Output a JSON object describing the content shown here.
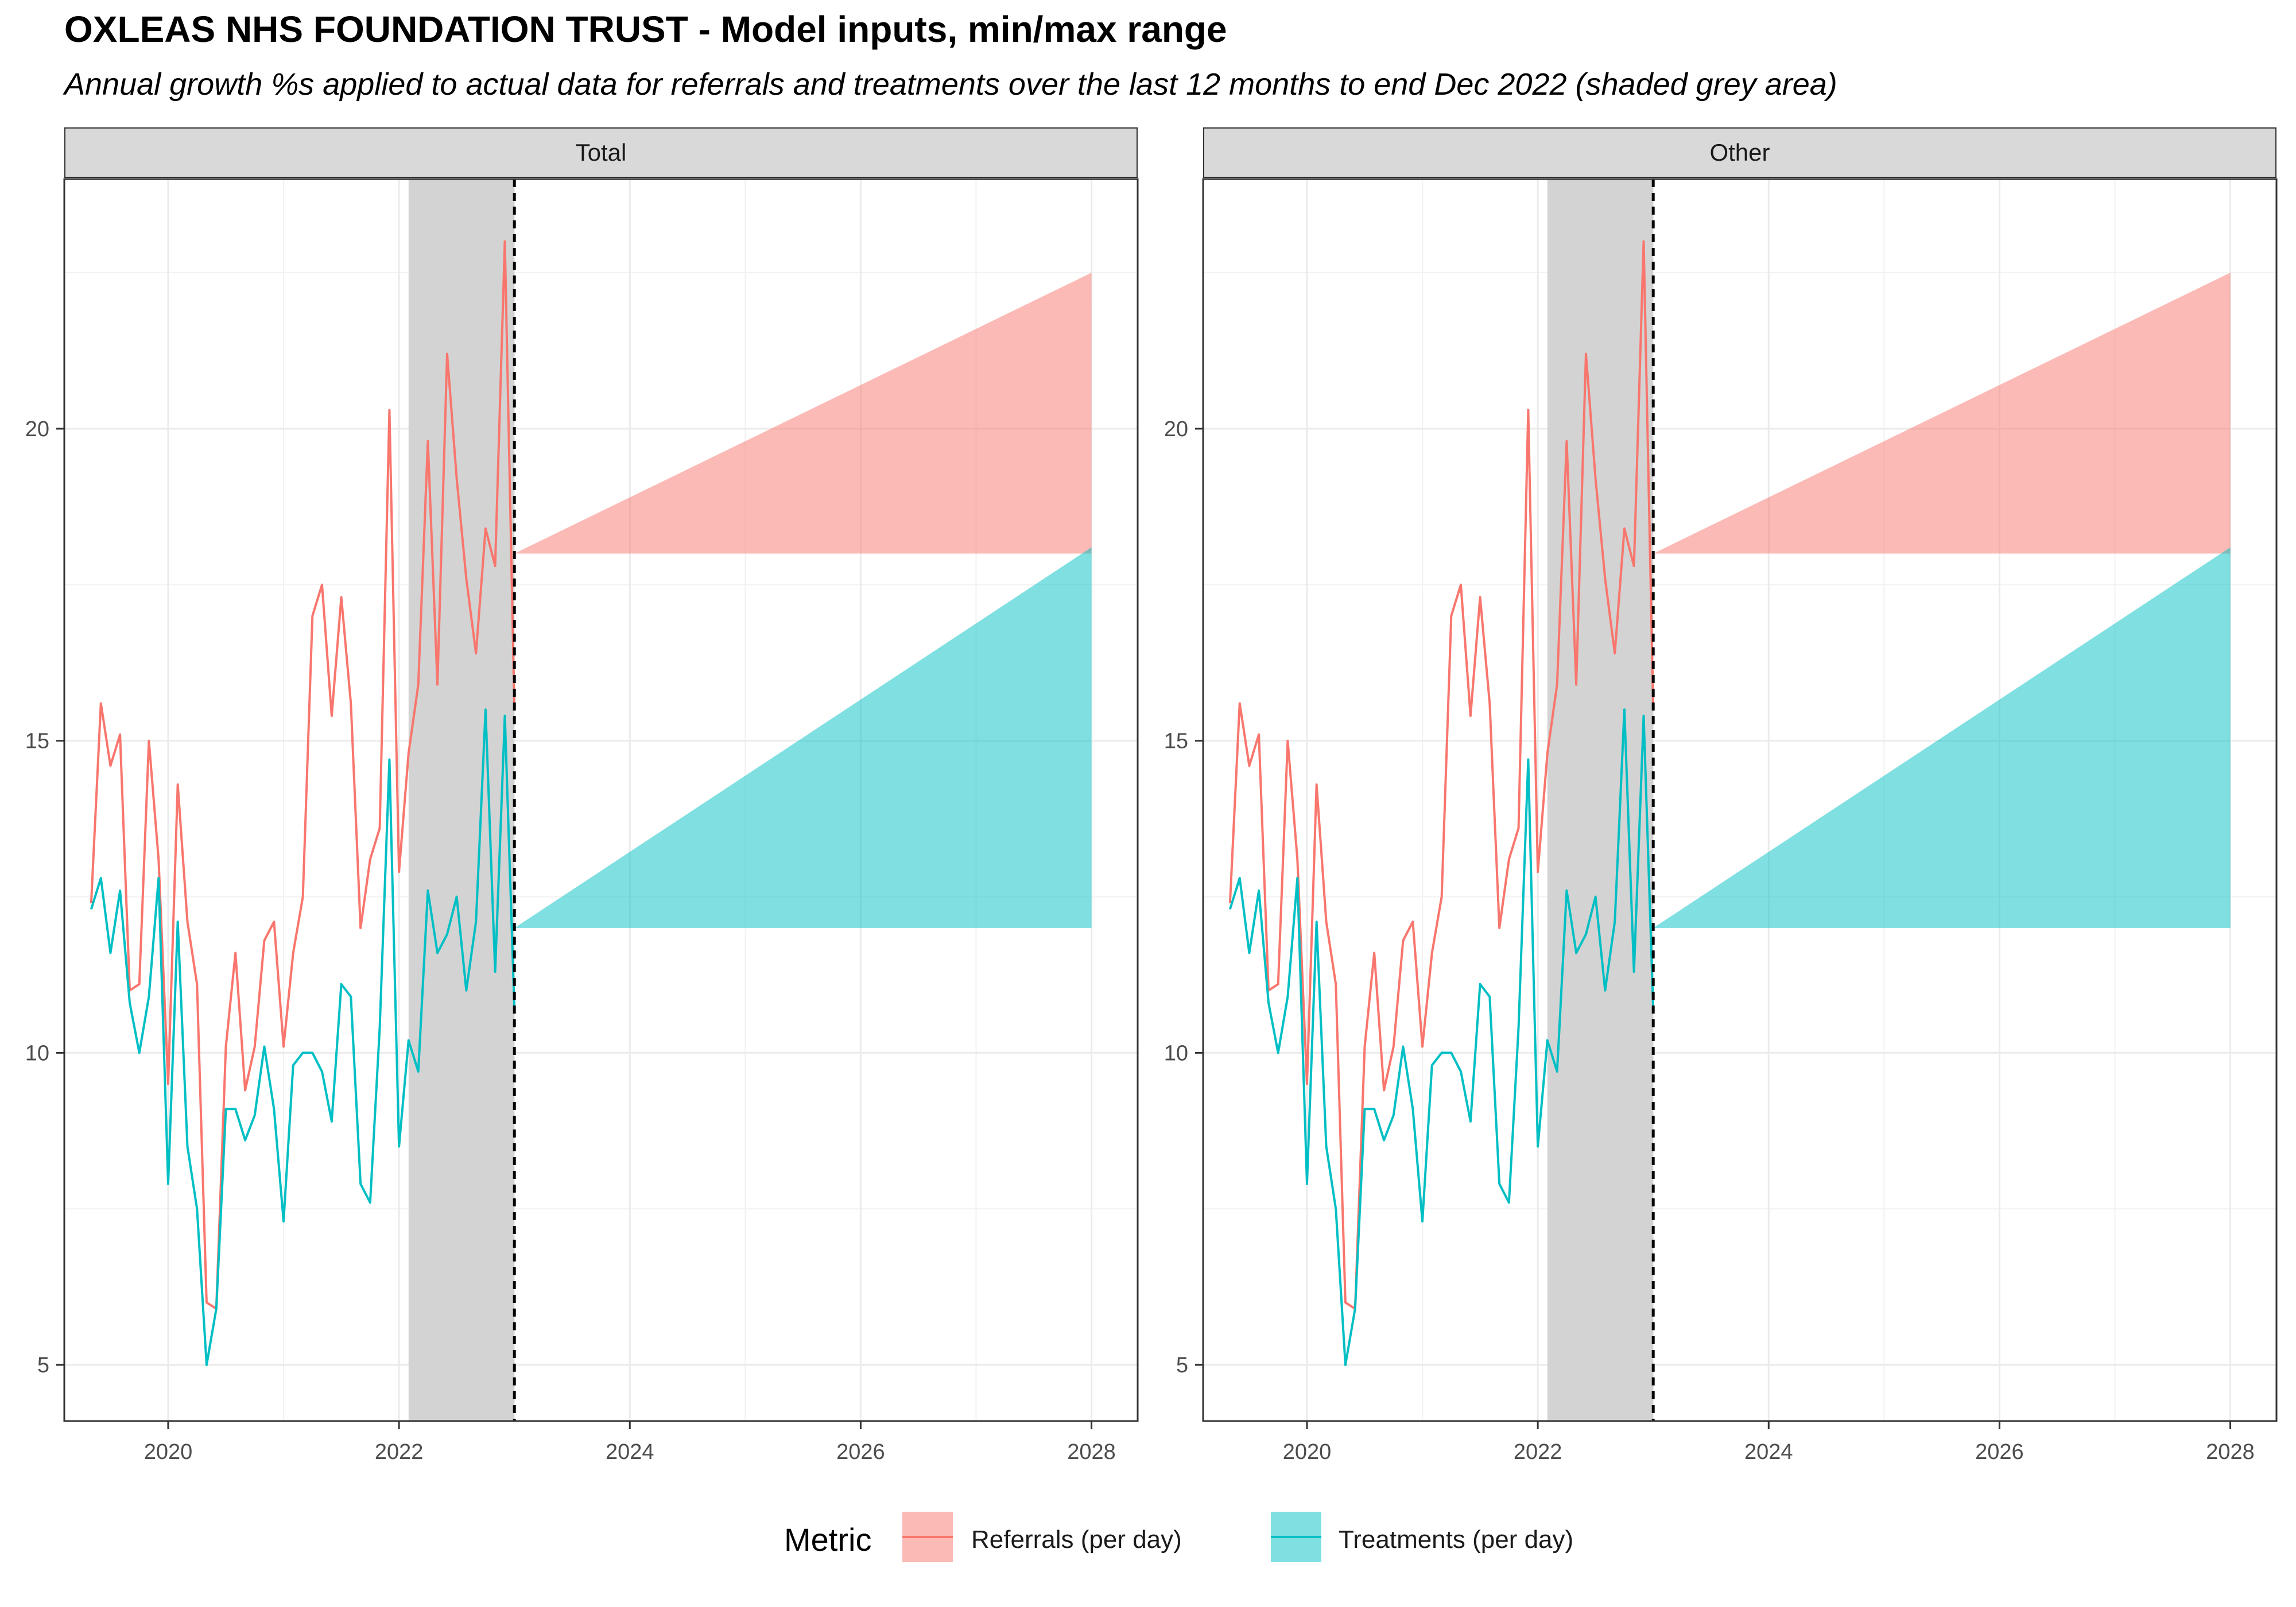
{
  "title": "OXLEAS NHS FOUNDATION TRUST - Model inputs, min/max range",
  "subtitle": "Annual growth %s applied to actual data for referrals and treatments over the last 12 months to end Dec 2022 (shaded grey area)",
  "legend": {
    "title": "Metric",
    "items": [
      {
        "label": "Referrals (per day)",
        "line_color": "#F8766D",
        "fill_color": "#F8766D"
      },
      {
        "label": "Treatments (per day)",
        "line_color": "#00BFC4",
        "fill_color": "#00BFC4"
      }
    ]
  },
  "chart_data": [
    {
      "type": "line",
      "facet": "Total",
      "xlim": [
        2019.1,
        2028.4
      ],
      "ylim": [
        4.1,
        24.0
      ],
      "x_ticks": [
        2020,
        2022,
        2024,
        2026,
        2028
      ],
      "y_ticks": [
        5,
        10,
        15,
        20
      ],
      "grid": true,
      "shaded_period": [
        2022.083,
        2023.0
      ],
      "reference_line": 2023.0,
      "x": [
        2019.333,
        2019.417,
        2019.5,
        2019.583,
        2019.667,
        2019.75,
        2019.833,
        2019.917,
        2020.0,
        2020.083,
        2020.167,
        2020.25,
        2020.333,
        2020.417,
        2020.5,
        2020.583,
        2020.667,
        2020.75,
        2020.833,
        2020.917,
        2021.0,
        2021.083,
        2021.167,
        2021.25,
        2021.333,
        2021.417,
        2021.5,
        2021.583,
        2021.667,
        2021.75,
        2021.833,
        2021.917,
        2022.0,
        2022.083,
        2022.167,
        2022.25,
        2022.333,
        2022.417,
        2022.5,
        2022.583,
        2022.667,
        2022.75,
        2022.833,
        2022.917,
        2023.0
      ],
      "series": [
        {
          "name": "Referrals (per day)",
          "color": "#F8766D",
          "values": [
            12.4,
            15.6,
            14.6,
            15.1,
            11.0,
            11.1,
            15.0,
            13.1,
            9.5,
            14.3,
            12.1,
            11.1,
            6.0,
            5.9,
            10.1,
            11.6,
            9.4,
            10.1,
            11.8,
            12.1,
            10.1,
            11.6,
            12.5,
            17.0,
            17.5,
            15.4,
            17.3,
            15.6,
            12.0,
            13.1,
            13.6,
            20.3,
            12.9,
            14.8,
            15.9,
            19.8,
            15.9,
            21.2,
            19.2,
            17.6,
            16.4,
            18.4,
            17.8,
            23.0,
            15.5
          ]
        },
        {
          "name": "Treatments (per day)",
          "color": "#00BFC4",
          "values": [
            12.3,
            12.8,
            11.6,
            12.6,
            10.8,
            10.0,
            10.9,
            12.8,
            7.9,
            12.1,
            8.5,
            7.5,
            5.0,
            5.9,
            9.1,
            9.1,
            8.6,
            9.0,
            10.1,
            9.1,
            7.3,
            9.8,
            10.0,
            10.0,
            9.7,
            8.9,
            11.1,
            10.9,
            7.9,
            7.6,
            10.4,
            14.7,
            8.5,
            10.2,
            9.7,
            12.6,
            11.6,
            11.9,
            12.5,
            11.0,
            12.1,
            15.5,
            11.3,
            15.4,
            10.7
          ]
        }
      ],
      "projection_ranges": [
        {
          "name": "Referrals (per day)",
          "x": [
            2023.0,
            2028.0
          ],
          "min": [
            18.0,
            18.0
          ],
          "max": [
            18.0,
            22.5
          ]
        },
        {
          "name": "Treatments (per day)",
          "x": [
            2023.0,
            2028.0
          ],
          "min": [
            12.0,
            12.0
          ],
          "max": [
            12.0,
            18.1
          ]
        }
      ]
    },
    {
      "type": "line",
      "facet": "Other",
      "xlim": [
        2019.1,
        2028.4
      ],
      "ylim": [
        4.1,
        24.0
      ],
      "x_ticks": [
        2020,
        2022,
        2024,
        2026,
        2028
      ],
      "y_ticks": [
        5,
        10,
        15,
        20
      ],
      "grid": true,
      "shaded_period": [
        2022.083,
        2023.0
      ],
      "reference_line": 2023.0,
      "x": [
        2019.333,
        2019.417,
        2019.5,
        2019.583,
        2019.667,
        2019.75,
        2019.833,
        2019.917,
        2020.0,
        2020.083,
        2020.167,
        2020.25,
        2020.333,
        2020.417,
        2020.5,
        2020.583,
        2020.667,
        2020.75,
        2020.833,
        2020.917,
        2021.0,
        2021.083,
        2021.167,
        2021.25,
        2021.333,
        2021.417,
        2021.5,
        2021.583,
        2021.667,
        2021.75,
        2021.833,
        2021.917,
        2022.0,
        2022.083,
        2022.167,
        2022.25,
        2022.333,
        2022.417,
        2022.5,
        2022.583,
        2022.667,
        2022.75,
        2022.833,
        2022.917,
        2023.0
      ],
      "series": [
        {
          "name": "Referrals (per day)",
          "color": "#F8766D",
          "values": [
            12.4,
            15.6,
            14.6,
            15.1,
            11.0,
            11.1,
            15.0,
            13.1,
            9.5,
            14.3,
            12.1,
            11.1,
            6.0,
            5.9,
            10.1,
            11.6,
            9.4,
            10.1,
            11.8,
            12.1,
            10.1,
            11.6,
            12.5,
            17.0,
            17.5,
            15.4,
            17.3,
            15.6,
            12.0,
            13.1,
            13.6,
            20.3,
            12.9,
            14.8,
            15.9,
            19.8,
            15.9,
            21.2,
            19.2,
            17.6,
            16.4,
            18.4,
            17.8,
            23.0,
            15.5
          ]
        },
        {
          "name": "Treatments (per day)",
          "color": "#00BFC4",
          "values": [
            12.3,
            12.8,
            11.6,
            12.6,
            10.8,
            10.0,
            10.9,
            12.8,
            7.9,
            12.1,
            8.5,
            7.5,
            5.0,
            5.9,
            9.1,
            9.1,
            8.6,
            9.0,
            10.1,
            9.1,
            7.3,
            9.8,
            10.0,
            10.0,
            9.7,
            8.9,
            11.1,
            10.9,
            7.9,
            7.6,
            10.4,
            14.7,
            8.5,
            10.2,
            9.7,
            12.6,
            11.6,
            11.9,
            12.5,
            11.0,
            12.1,
            15.5,
            11.3,
            15.4,
            10.7
          ]
        }
      ],
      "projection_ranges": [
        {
          "name": "Referrals (per day)",
          "x": [
            2023.0,
            2028.0
          ],
          "min": [
            18.0,
            18.0
          ],
          "max": [
            18.0,
            22.5
          ]
        },
        {
          "name": "Treatments (per day)",
          "x": [
            2023.0,
            2028.0
          ],
          "min": [
            12.0,
            12.0
          ],
          "max": [
            12.0,
            18.1
          ]
        }
      ]
    }
  ]
}
